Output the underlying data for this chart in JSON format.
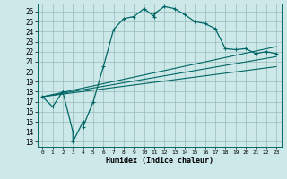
{
  "title": "",
  "xlabel": "Humidex (Indice chaleur)",
  "ylabel": "",
  "xlim": [
    -0.5,
    23.5
  ],
  "ylim": [
    12.5,
    26.8
  ],
  "xticks": [
    0,
    1,
    2,
    3,
    4,
    5,
    6,
    7,
    8,
    9,
    10,
    11,
    12,
    13,
    14,
    15,
    16,
    17,
    18,
    19,
    20,
    21,
    22,
    23
  ],
  "yticks": [
    13,
    14,
    15,
    16,
    17,
    18,
    19,
    20,
    21,
    22,
    23,
    24,
    25,
    26
  ],
  "bg_color": "#cce8e8",
  "line_color": "#006666",
  "grid_color": "#99bbbb",
  "curve_x": [
    0,
    1,
    2,
    3,
    3,
    4,
    4,
    5,
    6,
    7,
    8,
    9,
    10,
    11,
    11,
    12,
    13,
    14,
    15,
    16,
    17,
    18,
    19,
    20,
    21,
    22,
    23
  ],
  "curve_y": [
    17.5,
    16.5,
    18.0,
    14.0,
    13.0,
    15.0,
    14.5,
    17.0,
    20.5,
    24.2,
    25.3,
    25.5,
    26.3,
    25.5,
    25.8,
    26.5,
    26.3,
    25.7,
    25.0,
    24.8,
    24.3,
    22.3,
    22.2,
    22.3,
    21.8,
    22.0,
    21.8
  ],
  "line2_x": [
    0,
    23
  ],
  "line2_y": [
    17.5,
    22.5
  ],
  "line3_x": [
    0,
    23
  ],
  "line3_y": [
    17.5,
    21.5
  ],
  "line4_x": [
    0,
    23
  ],
  "line4_y": [
    17.5,
    20.5
  ]
}
